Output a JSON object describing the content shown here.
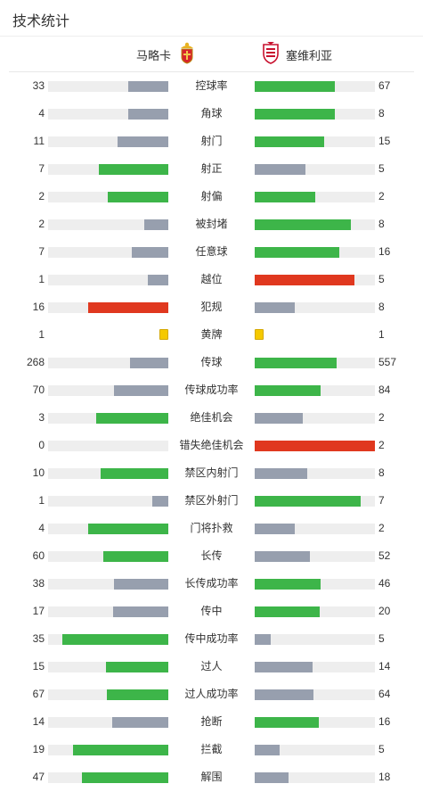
{
  "page_title": "技术统计",
  "teams": {
    "home": {
      "name": "马略卡",
      "logo": "mallorca-crest-icon"
    },
    "away": {
      "name": "塞维利亚",
      "logo": "sevilla-crest-icon"
    }
  },
  "colors": {
    "green": "#3db549",
    "gray": "#979fae",
    "red": "#e0381f",
    "yellow": "#f5c900",
    "track": "#eeeeee"
  },
  "stats": [
    {
      "label": "控球率",
      "home": "33",
      "away": "67",
      "home_fill": 0.33,
      "away_fill": 0.67,
      "home_color": "gray",
      "away_color": "green"
    },
    {
      "label": "角球",
      "home": "4",
      "away": "8",
      "home_fill": 0.33,
      "away_fill": 0.67,
      "home_color": "gray",
      "away_color": "green"
    },
    {
      "label": "射门",
      "home": "11",
      "away": "15",
      "home_fill": 0.42,
      "away_fill": 0.58,
      "home_color": "gray",
      "away_color": "green"
    },
    {
      "label": "射正",
      "home": "7",
      "away": "5",
      "home_fill": 0.58,
      "away_fill": 0.42,
      "home_color": "green",
      "away_color": "gray"
    },
    {
      "label": "射偏",
      "home": "2",
      "away": "2",
      "home_fill": 0.5,
      "away_fill": 0.5,
      "home_color": "green",
      "away_color": "green"
    },
    {
      "label": "被封堵",
      "home": "2",
      "away": "8",
      "home_fill": 0.2,
      "away_fill": 0.8,
      "home_color": "gray",
      "away_color": "green"
    },
    {
      "label": "任意球",
      "home": "7",
      "away": "16",
      "home_fill": 0.3,
      "away_fill": 0.7,
      "home_color": "gray",
      "away_color": "green"
    },
    {
      "label": "越位",
      "home": "1",
      "away": "5",
      "home_fill": 0.17,
      "away_fill": 0.83,
      "home_color": "gray",
      "away_color": "red"
    },
    {
      "label": "犯规",
      "home": "16",
      "away": "8",
      "home_fill": 0.67,
      "away_fill": 0.33,
      "home_color": "red",
      "away_color": "gray"
    },
    {
      "label": "黄牌",
      "home": "1",
      "away": "1",
      "type": "card"
    },
    {
      "label": "传球",
      "home": "268",
      "away": "557",
      "home_fill": 0.32,
      "away_fill": 0.68,
      "home_color": "gray",
      "away_color": "green"
    },
    {
      "label": "传球成功率",
      "home": "70",
      "away": "84",
      "home_fill": 0.45,
      "away_fill": 0.55,
      "home_color": "gray",
      "away_color": "green"
    },
    {
      "label": "绝佳机会",
      "home": "3",
      "away": "2",
      "home_fill": 0.6,
      "away_fill": 0.4,
      "home_color": "green",
      "away_color": "gray"
    },
    {
      "label": "错失绝佳机会",
      "home": "0",
      "away": "2",
      "home_fill": 0,
      "away_fill": 1,
      "home_color": "gray",
      "away_color": "red"
    },
    {
      "label": "禁区内射门",
      "home": "10",
      "away": "8",
      "home_fill": 0.56,
      "away_fill": 0.44,
      "home_color": "green",
      "away_color": "gray"
    },
    {
      "label": "禁区外射门",
      "home": "1",
      "away": "7",
      "home_fill": 0.13,
      "away_fill": 0.88,
      "home_color": "gray",
      "away_color": "green"
    },
    {
      "label": "门将扑救",
      "home": "4",
      "away": "2",
      "home_fill": 0.67,
      "away_fill": 0.33,
      "home_color": "green",
      "away_color": "gray"
    },
    {
      "label": "长传",
      "home": "60",
      "away": "52",
      "home_fill": 0.54,
      "away_fill": 0.46,
      "home_color": "green",
      "away_color": "gray"
    },
    {
      "label": "长传成功率",
      "home": "38",
      "away": "46",
      "home_fill": 0.45,
      "away_fill": 0.55,
      "home_color": "gray",
      "away_color": "green"
    },
    {
      "label": "传中",
      "home": "17",
      "away": "20",
      "home_fill": 0.46,
      "away_fill": 0.54,
      "home_color": "gray",
      "away_color": "green"
    },
    {
      "label": "传中成功率",
      "home": "35",
      "away": "5",
      "home_fill": 0.88,
      "away_fill": 0.13,
      "home_color": "green",
      "away_color": "gray"
    },
    {
      "label": "过人",
      "home": "15",
      "away": "14",
      "home_fill": 0.52,
      "away_fill": 0.48,
      "home_color": "green",
      "away_color": "gray"
    },
    {
      "label": "过人成功率",
      "home": "67",
      "away": "64",
      "home_fill": 0.51,
      "away_fill": 0.49,
      "home_color": "green",
      "away_color": "gray"
    },
    {
      "label": "抢断",
      "home": "14",
      "away": "16",
      "home_fill": 0.47,
      "away_fill": 0.53,
      "home_color": "gray",
      "away_color": "green"
    },
    {
      "label": "拦截",
      "home": "19",
      "away": "5",
      "home_fill": 0.79,
      "away_fill": 0.21,
      "home_color": "green",
      "away_color": "gray"
    },
    {
      "label": "解围",
      "home": "47",
      "away": "18",
      "home_fill": 0.72,
      "away_fill": 0.28,
      "home_color": "green",
      "away_color": "gray"
    }
  ]
}
